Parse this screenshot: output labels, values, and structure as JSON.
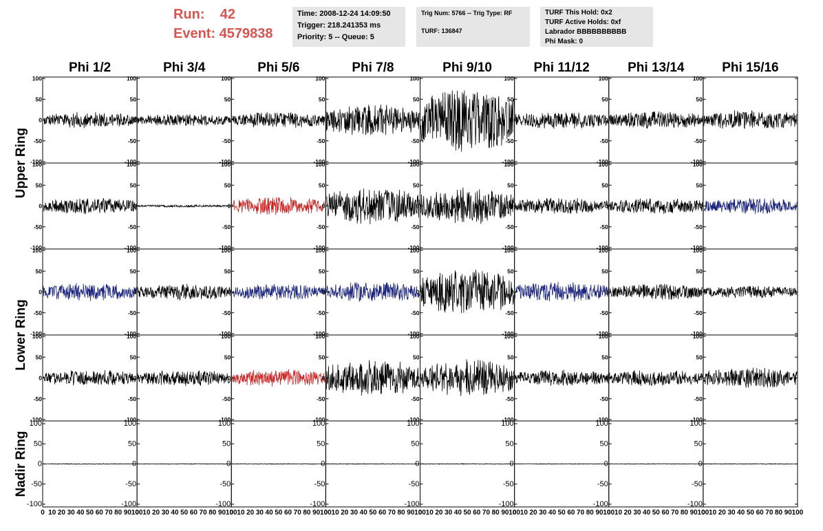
{
  "header": {
    "run_label": "Run:",
    "run_value": "42",
    "event_label": "Event:",
    "event_value": "4579838",
    "time": "Time: 2008-12-24 14:09:50",
    "trigger": "Trigger: 218.241353 ms",
    "priority": "Priority: 5 -- Queue: 5",
    "trig_num": "Trig Num: 5766 -- Trig Type: RF",
    "turf": "TURF: 136847",
    "turf_hold": "TURF This Hold: 0x2",
    "turf_active": "TURF Active Holds: 0xf",
    "labrador": "Labrador BBBBBBBBBB",
    "phi_mask": "Phi Mask: 0"
  },
  "columns": [
    "Phi 1/2",
    "Phi 3/4",
    "Phi 5/6",
    "Phi 7/8",
    "Phi 9/10",
    "Phi 11/12",
    "Phi 13/14",
    "Phi 15/16"
  ],
  "row_groups": [
    "Upper Ring",
    "Lower Ring",
    "Nadir Ring"
  ],
  "y_ticks": [
    "100",
    "50",
    "0",
    "-50",
    "-100"
  ],
  "x_axis_text": "0 10 20 30 40 50 60 70 80 90 100",
  "colors": {
    "black": "#000000",
    "red": "#cc2222",
    "blue": "#1a237e",
    "run_text": "#d9534f",
    "info_bg": "#e6e6e6"
  },
  "chart_data": {
    "type": "line",
    "xlim": [
      0,
      100
    ],
    "ylim": [
      -100,
      100
    ],
    "panel_rows": [
      {
        "amplitudes": [
          20,
          15,
          20,
          40,
          80,
          22,
          22,
          25
        ],
        "colors": [
          "black",
          "black",
          "black",
          "black",
          "black",
          "black",
          "black",
          "black"
        ]
      },
      {
        "amplitudes": [
          20,
          3,
          22,
          45,
          45,
          20,
          20,
          20
        ],
        "colors": [
          "black",
          "black",
          "red",
          "black",
          "black",
          "black",
          "black",
          "blue"
        ]
      },
      {
        "amplitudes": [
          22,
          20,
          20,
          25,
          55,
          25,
          20,
          15
        ],
        "colors": [
          "blue",
          "black",
          "blue",
          "blue",
          "black",
          "blue",
          "black",
          "black"
        ]
      },
      {
        "amplitudes": [
          20,
          20,
          22,
          45,
          45,
          20,
          20,
          25
        ],
        "colors": [
          "black",
          "black",
          "red",
          "black",
          "black",
          "black",
          "black",
          "black"
        ]
      },
      {
        "amplitudes": [
          1,
          1,
          1,
          1,
          1,
          1,
          1,
          1
        ],
        "colors": [
          "black",
          "black",
          "black",
          "black",
          "black",
          "black",
          "black",
          "black"
        ]
      }
    ]
  }
}
